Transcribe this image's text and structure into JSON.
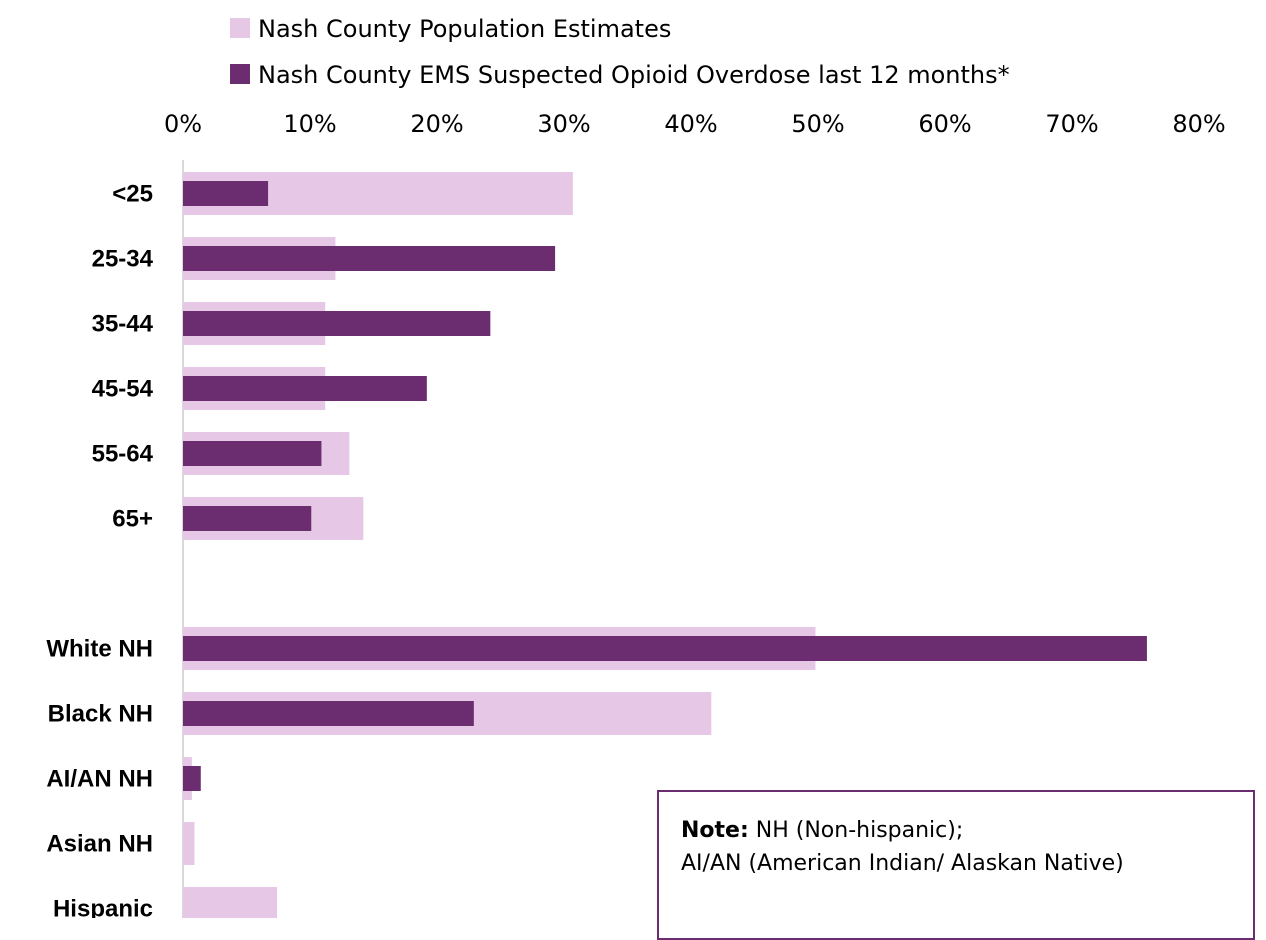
{
  "chart_data": {
    "type": "bar",
    "orientation": "horizontal",
    "categories": [
      "<25",
      "25-34",
      "35-44",
      "45-54",
      "55-64",
      "65+",
      "",
      "White NH",
      "Black NH",
      "AI/AN NH",
      "Asian NH",
      "Hispanic"
    ],
    "series": [
      {
        "name": "Nash County Population Estimates",
        "color": "#e6c8e6",
        "values": [
          30.7,
          12.0,
          11.2,
          11.2,
          13.1,
          14.2,
          null,
          49.8,
          41.6,
          0.7,
          0.9,
          7.4
        ]
      },
      {
        "name": "Nash County EMS Suspected Opioid Overdose last 12 months*",
        "color": "#6b2c70",
        "values": [
          6.7,
          29.3,
          24.2,
          19.2,
          10.9,
          10.1,
          null,
          75.9,
          22.9,
          1.4,
          0,
          0
        ]
      }
    ],
    "xlim": [
      0,
      80
    ],
    "xticks": [
      "0%",
      "10%",
      "20%",
      "30%",
      "40%",
      "50%",
      "60%",
      "70%",
      "80%"
    ],
    "axis_position": "top",
    "legend_position": "top",
    "grid": false
  },
  "note": {
    "label": "Note:",
    "line1": " NH (Non-hispanic);",
    "line2": "AI/AN (American Indian/ Alaskan Native)"
  }
}
